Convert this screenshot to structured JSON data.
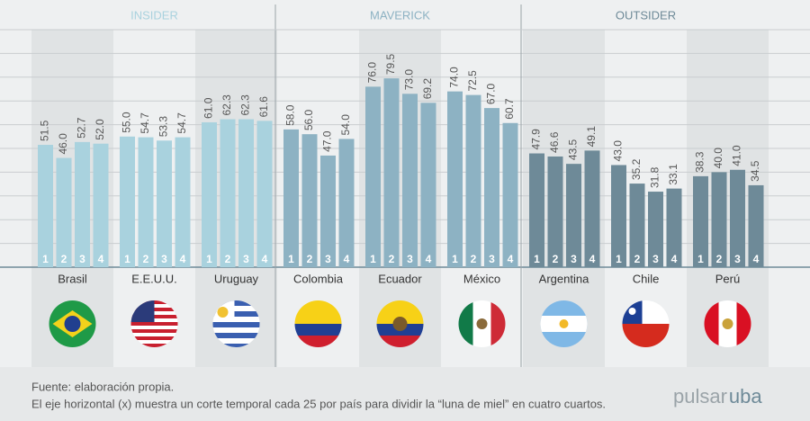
{
  "chart_data": {
    "type": "bar",
    "quarters": [
      "1",
      "2",
      "3",
      "4"
    ],
    "ylim": [
      0,
      100
    ],
    "yticks": [
      0,
      10,
      20,
      30,
      40,
      50,
      60,
      70,
      80,
      90,
      100
    ],
    "grid": true,
    "groups": [
      {
        "name": "INSIDER",
        "color": "#a9d2de",
        "series": [
          {
            "name": "Brasil",
            "values": [
              51.5,
              46.0,
              52.7,
              52.0
            ],
            "value_labels": [
              "51.5",
              "46.0",
              "52.7",
              "52.0"
            ]
          },
          {
            "name": "E.E.U.U.",
            "values": [
              55.0,
              54.7,
              53.3,
              54.7
            ],
            "value_labels": [
              "55.0",
              "54.7",
              "53.3",
              "54.7"
            ]
          },
          {
            "name": "Uruguay",
            "values": [
              61.0,
              62.3,
              62.3,
              61.6
            ],
            "value_labels": [
              "61.0",
              "62.3",
              "62.3",
              "61.6"
            ]
          }
        ]
      },
      {
        "name": "MAVERICK",
        "color": "#8db2c3",
        "series": [
          {
            "name": "Colombia",
            "values": [
              58.0,
              56.0,
              47.0,
              54.0
            ],
            "value_labels": [
              "58.0",
              "56.0",
              "47.0",
              "54.0"
            ]
          },
          {
            "name": "Ecuador",
            "values": [
              76.0,
              79.5,
              73.0,
              69.2
            ],
            "value_labels": [
              "76.0",
              "79.5",
              "73.0",
              "69.2"
            ]
          },
          {
            "name": "México",
            "values": [
              74.0,
              72.5,
              67.0,
              60.7
            ],
            "value_labels": [
              "74.0",
              "72.5",
              "67.0",
              "60.7"
            ]
          }
        ]
      },
      {
        "name": "OUTSIDER",
        "color": "#6e8a98",
        "series": [
          {
            "name": "Argentina",
            "values": [
              47.9,
              46.6,
              43.5,
              49.1
            ],
            "value_labels": [
              "47.9",
              "46.6",
              "43.5",
              "49.1"
            ]
          },
          {
            "name": "Chile",
            "values": [
              43.0,
              35.2,
              31.8,
              33.1
            ],
            "value_labels": [
              "43.0",
              "35.2",
              "31.8",
              "33.1"
            ]
          },
          {
            "name": "Perú",
            "values": [
              38.3,
              40.0,
              41.0,
              34.5
            ],
            "value_labels": [
              "38.3",
              "40.0",
              "41.0",
              "34.5"
            ]
          }
        ]
      }
    ],
    "notes": [
      "Fuente: elaboración propia.",
      "El eje horizontal (x) muestra un corte temporal cada 25 por país para dividir la “luna de miel” en cuatro cuartos."
    ],
    "brand": [
      "pulsar",
      "uba"
    ]
  }
}
